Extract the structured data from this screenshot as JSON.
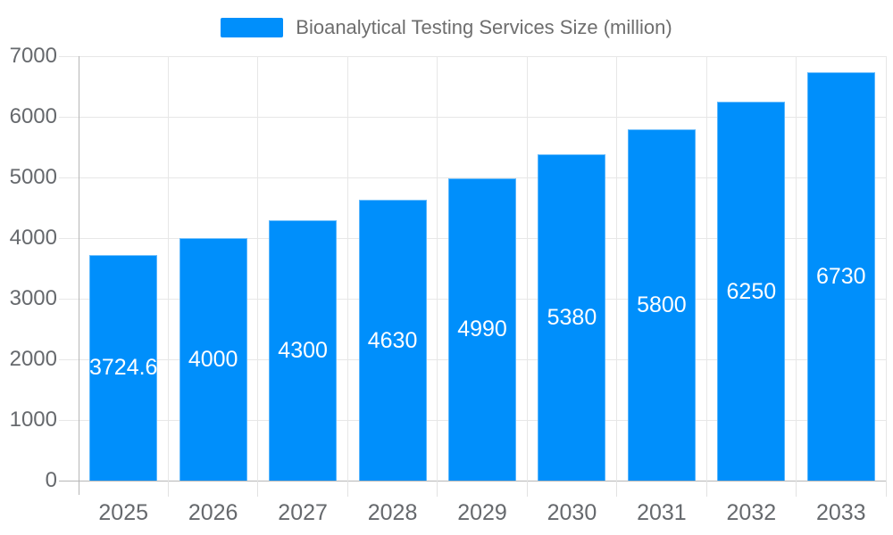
{
  "legend": {
    "label": "Bioanalytical Testing Services Size (million)"
  },
  "chart_data": {
    "type": "bar",
    "title": "Bioanalytical Testing Services Size (million)",
    "series_name": "Bioanalytical Testing Services Size (million)",
    "categories": [
      "2025",
      "2026",
      "2027",
      "2028",
      "2029",
      "2030",
      "2031",
      "2032",
      "2033"
    ],
    "values": [
      3724.6,
      4000,
      4300,
      4630,
      4990,
      5380,
      5800,
      6250,
      6730
    ],
    "value_labels": [
      "3724.6",
      "4000",
      "4300",
      "4630",
      "4990",
      "5380",
      "5800",
      "6250",
      "6730"
    ],
    "xlabel": "",
    "ylabel": "",
    "ylim": [
      0,
      7000
    ],
    "y_ticks": [
      0,
      1000,
      2000,
      3000,
      4000,
      5000,
      6000,
      7000
    ],
    "grid": true,
    "legend_position": "top",
    "colors": {
      "bar": "#008FFB",
      "bar_label": "#ffffff",
      "grid_line": "#e7e7e7",
      "axis_line": "#b6b6b6",
      "tick": "#e2e2e2",
      "axis_text": "#66696d",
      "legend_text": "#6e6e6e"
    }
  }
}
